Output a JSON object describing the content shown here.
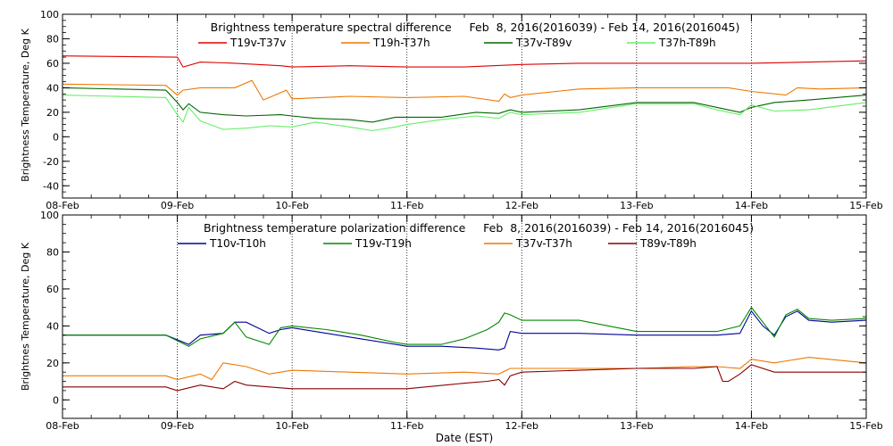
{
  "chart_data": [
    {
      "type": "line",
      "title": "Brightness temperature spectral difference     Feb  8, 2016(2016039) - Feb 14, 2016(2016045)",
      "ylabel": "Brightness Temperature, Deg K",
      "xlabel": "",
      "ylim": [
        -50,
        100
      ],
      "yticks": [
        -40,
        -20,
        0,
        20,
        40,
        60,
        80,
        100
      ],
      "xlim": [
        0,
        7
      ],
      "x_tick_labels": [
        "08-Feb",
        "09-Feb",
        "10-Feb",
        "11-Feb",
        "12-Feb",
        "13-Feb",
        "14-Feb",
        "15-Feb"
      ],
      "grid": "vertical dotted lines at day boundaries",
      "legend_placement": "top",
      "series": [
        {
          "name": "T19v-T37v",
          "color": "#dd0000",
          "x": [
            0,
            1.0,
            1.05,
            1.2,
            1.5,
            1.9,
            2.0,
            2.5,
            3.0,
            3.5,
            4.0,
            4.5,
            5.0,
            5.5,
            6.0,
            6.5,
            7.0
          ],
          "values": [
            66,
            65,
            57,
            61,
            60,
            58,
            57,
            58,
            57,
            57,
            59,
            60,
            60,
            60,
            60,
            61,
            62
          ]
        },
        {
          "name": "T19h-T37h",
          "color": "#ee7700",
          "x": [
            0,
            0.9,
            1.0,
            1.05,
            1.2,
            1.5,
            1.65,
            1.75,
            1.95,
            2.0,
            2.5,
            3.0,
            3.5,
            3.8,
            3.85,
            3.9,
            4.0,
            4.5,
            5.0,
            5.5,
            5.8,
            6.0,
            6.3,
            6.4,
            6.6,
            7.0
          ],
          "values": [
            43,
            42,
            34,
            38,
            40,
            40,
            46,
            30,
            38,
            31,
            33,
            32,
            33,
            29,
            35,
            32,
            34,
            39,
            40,
            40,
            40,
            37,
            34,
            40,
            39,
            40
          ]
        },
        {
          "name": "T37v-T89v",
          "color": "#006600",
          "x": [
            0,
            0.9,
            1.0,
            1.05,
            1.1,
            1.2,
            1.4,
            1.6,
            1.9,
            2.0,
            2.2,
            2.5,
            2.7,
            2.9,
            3.0,
            3.3,
            3.6,
            3.8,
            3.9,
            4.0,
            4.5,
            5.0,
            5.5,
            5.7,
            5.9,
            6.0,
            6.2,
            6.5,
            7.0
          ],
          "values": [
            40,
            38,
            28,
            22,
            27,
            20,
            18,
            17,
            18,
            17,
            15,
            14,
            12,
            16,
            16,
            16,
            20,
            19,
            22,
            20,
            22,
            28,
            28,
            24,
            20,
            24,
            28,
            30,
            34
          ]
        },
        {
          "name": "T37h-T89h",
          "color": "#66ee66",
          "x": [
            0,
            0.9,
            1.0,
            1.05,
            1.1,
            1.2,
            1.4,
            1.6,
            1.8,
            2.0,
            2.2,
            2.5,
            2.7,
            2.9,
            3.0,
            3.3,
            3.6,
            3.8,
            3.9,
            4.0,
            4.5,
            5.0,
            5.5,
            5.7,
            5.9,
            6.0,
            6.2,
            6.5,
            7.0
          ],
          "values": [
            34,
            32,
            18,
            12,
            24,
            13,
            6,
            7,
            9,
            8,
            12,
            8,
            5,
            8,
            10,
            14,
            17,
            15,
            20,
            18,
            20,
            27,
            27,
            22,
            18,
            26,
            21,
            22,
            28
          ]
        }
      ]
    },
    {
      "type": "line",
      "title": "Brightness temperature polarization difference     Feb  8, 2016(2016039) - Feb 14, 2016(2016045)",
      "ylabel": "Brightnes Temperature, Deg K",
      "xlabel": "Date (EST)",
      "ylim": [
        -10,
        100
      ],
      "yticks": [
        0,
        20,
        40,
        60,
        80,
        100
      ],
      "xlim": [
        0,
        7
      ],
      "x_tick_labels": [
        "08-Feb",
        "09-Feb",
        "10-Feb",
        "11-Feb",
        "12-Feb",
        "13-Feb",
        "14-Feb",
        "15-Feb"
      ],
      "grid": "vertical dotted lines at day boundaries",
      "legend_placement": "top",
      "series": [
        {
          "name": "T10v-T10h",
          "color": "#000099",
          "x": [
            0,
            0.9,
            1.1,
            1.2,
            1.4,
            1.5,
            1.6,
            1.8,
            1.9,
            2.0,
            2.3,
            2.6,
            2.9,
            3.0,
            3.3,
            3.6,
            3.8,
            3.85,
            3.9,
            4.0,
            4.5,
            5.0,
            5.5,
            5.7,
            5.9,
            6.0,
            6.1,
            6.2,
            6.3,
            6.4,
            6.5,
            6.7,
            7.0
          ],
          "values": [
            35,
            35,
            30,
            35,
            36,
            42,
            42,
            36,
            38,
            39,
            36,
            33,
            30,
            29,
            29,
            28,
            27,
            28,
            37,
            36,
            36,
            35,
            35,
            35,
            36,
            48,
            40,
            35,
            45,
            48,
            43,
            42,
            43
          ]
        },
        {
          "name": "T19v-T19h",
          "color": "#008800",
          "x": [
            0,
            0.9,
            1.1,
            1.2,
            1.4,
            1.5,
            1.6,
            1.8,
            1.9,
            2.0,
            2.3,
            2.6,
            2.9,
            3.0,
            3.3,
            3.5,
            3.7,
            3.8,
            3.85,
            3.9,
            4.0,
            4.5,
            5.0,
            5.5,
            5.7,
            5.9,
            6.0,
            6.1,
            6.2,
            6.3,
            6.4,
            6.5,
            6.7,
            7.0
          ],
          "values": [
            35,
            35,
            29,
            33,
            36,
            42,
            34,
            30,
            39,
            40,
            38,
            35,
            31,
            30,
            30,
            33,
            38,
            42,
            47,
            46,
            43,
            43,
            37,
            37,
            37,
            40,
            50,
            42,
            34,
            46,
            49,
            44,
            43,
            44
          ]
        },
        {
          "name": "T37v-T37h",
          "color": "#ee7700",
          "x": [
            0,
            0.9,
            1.0,
            1.2,
            1.3,
            1.4,
            1.6,
            1.8,
            2.0,
            2.5,
            3.0,
            3.5,
            3.8,
            3.9,
            4.0,
            4.5,
            5.0,
            5.5,
            5.7,
            5.9,
            6.0,
            6.2,
            6.5,
            7.0
          ],
          "values": [
            13,
            13,
            11,
            14,
            11,
            20,
            18,
            14,
            16,
            15,
            14,
            15,
            14,
            17,
            17,
            17,
            17,
            18,
            18,
            17,
            22,
            20,
            23,
            20
          ]
        },
        {
          "name": "T89v-T89h",
          "color": "#880000",
          "x": [
            0,
            0.9,
            1.0,
            1.2,
            1.4,
            1.5,
            1.6,
            1.8,
            2.0,
            2.5,
            3.0,
            3.5,
            3.7,
            3.8,
            3.85,
            3.9,
            4.0,
            4.5,
            5.0,
            5.5,
            5.7,
            5.75,
            5.8,
            5.9,
            6.0,
            6.2,
            6.5,
            7.0
          ],
          "values": [
            7,
            7,
            5,
            8,
            6,
            10,
            8,
            7,
            6,
            6,
            6,
            9,
            10,
            11,
            8,
            13,
            15,
            16,
            17,
            17,
            18,
            10,
            10,
            14,
            19,
            15,
            15,
            15
          ]
        }
      ]
    }
  ]
}
